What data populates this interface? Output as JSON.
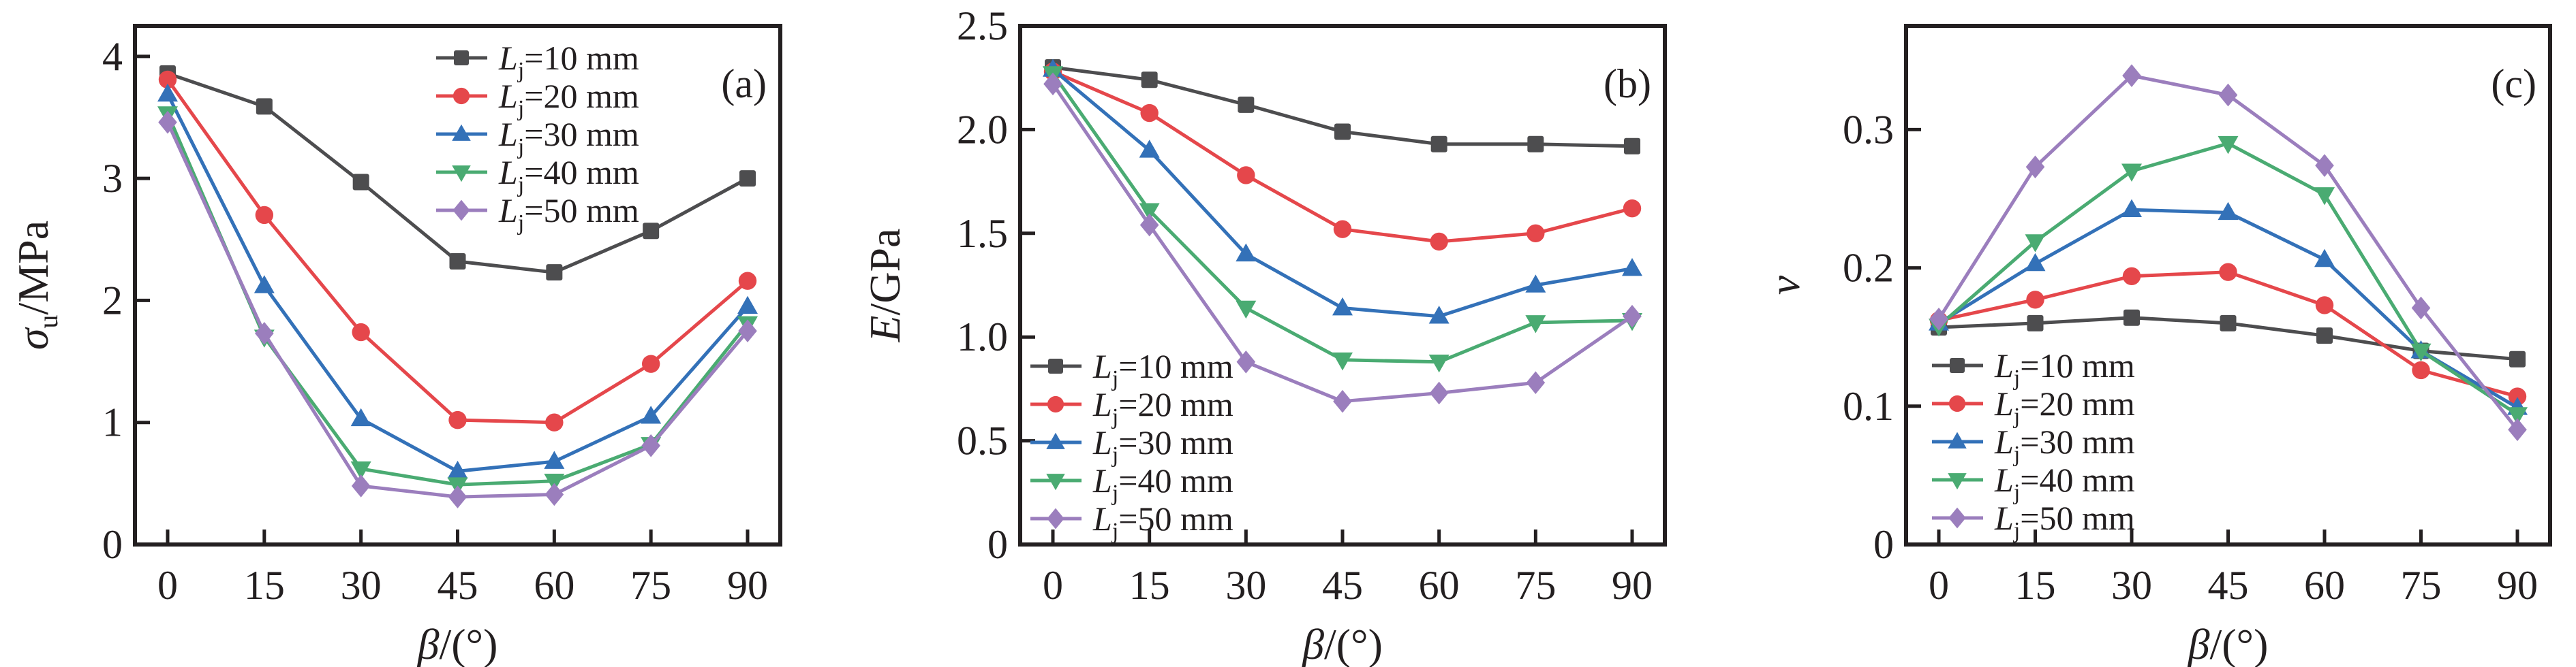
{
  "chart_data": [
    {
      "type": "line",
      "panel_label": "(a)",
      "ylabel_main": "σ",
      "ylabel_sub": "u",
      "ylabel_rest": "/MPa",
      "xlabel_main": "β",
      "xlabel_rest": "/(°)",
      "x": [
        0,
        15,
        30,
        45,
        60,
        75,
        90
      ],
      "xticks": [
        "0",
        "15",
        "30",
        "45",
        "60",
        "75",
        "90"
      ],
      "ylim": [
        0,
        4.25
      ],
      "yticks": [
        0,
        1,
        2,
        3,
        4
      ],
      "ytick_labels": [
        "0",
        "1",
        "2",
        "3",
        "4"
      ],
      "legend_position": "top-right",
      "series": [
        {
          "name": "Lj=10 mm",
          "values": [
            3.86,
            3.59,
            2.97,
            2.32,
            2.23,
            2.57,
            3.0
          ]
        },
        {
          "name": "Lj=20 mm",
          "values": [
            3.81,
            2.7,
            1.74,
            1.02,
            1.0,
            1.48,
            2.16
          ]
        },
        {
          "name": "Lj=30 mm",
          "values": [
            3.69,
            2.12,
            1.03,
            0.6,
            0.68,
            1.05,
            1.95
          ]
        },
        {
          "name": "Lj=40 mm",
          "values": [
            3.53,
            1.7,
            0.62,
            0.49,
            0.52,
            0.82,
            1.81
          ]
        },
        {
          "name": "Lj=50 mm",
          "values": [
            3.46,
            1.73,
            0.48,
            0.39,
            0.41,
            0.81,
            1.75
          ]
        }
      ]
    },
    {
      "type": "line",
      "panel_label": "(b)",
      "ylabel_main": "E",
      "ylabel_sub": "",
      "ylabel_rest": "/GPa",
      "xlabel_main": "β",
      "xlabel_rest": "/(°)",
      "x": [
        0,
        15,
        30,
        45,
        60,
        75,
        90
      ],
      "xticks": [
        "0",
        "15",
        "30",
        "45",
        "60",
        "75",
        "90"
      ],
      "ylim": [
        0,
        2.5
      ],
      "yticks": [
        0,
        0.5,
        1.0,
        1.5,
        2.0,
        2.5
      ],
      "ytick_labels": [
        "0",
        "0.5",
        "1.0",
        "1.5",
        "2.0",
        "2.5"
      ],
      "legend_position": "bottom-left",
      "series": [
        {
          "name": "Lj=10 mm",
          "values": [
            2.3,
            2.24,
            2.12,
            1.99,
            1.93,
            1.93,
            1.92
          ]
        },
        {
          "name": "Lj=20 mm",
          "values": [
            2.28,
            2.08,
            1.78,
            1.52,
            1.46,
            1.5,
            1.62
          ]
        },
        {
          "name": "Lj=30 mm",
          "values": [
            2.29,
            1.9,
            1.4,
            1.14,
            1.1,
            1.25,
            1.33
          ]
        },
        {
          "name": "Lj=40 mm",
          "values": [
            2.27,
            1.61,
            1.14,
            0.89,
            0.88,
            1.07,
            1.08
          ]
        },
        {
          "name": "Lj=50 mm",
          "values": [
            2.22,
            1.54,
            0.88,
            0.69,
            0.73,
            0.78,
            1.1
          ]
        }
      ]
    },
    {
      "type": "line",
      "panel_label": "(c)",
      "ylabel_main": "ν",
      "ylabel_sub": "",
      "ylabel_rest": "",
      "xlabel_main": "β",
      "xlabel_rest": "/(°)",
      "x": [
        0,
        15,
        30,
        45,
        60,
        75,
        90
      ],
      "xticks": [
        "0",
        "15",
        "30",
        "45",
        "60",
        "75",
        "90"
      ],
      "ylim": [
        0,
        0.375
      ],
      "yticks": [
        0,
        0.1,
        0.2,
        0.3
      ],
      "ytick_labels": [
        "0",
        "0.1",
        "0.2",
        "0.3"
      ],
      "legend_position": "bottom-left",
      "series": [
        {
          "name": "Lj=10 mm",
          "values": [
            0.157,
            0.16,
            0.164,
            0.16,
            0.151,
            0.14,
            0.134
          ]
        },
        {
          "name": "Lj=20 mm",
          "values": [
            0.162,
            0.177,
            0.194,
            0.197,
            0.173,
            0.126,
            0.107
          ]
        },
        {
          "name": "Lj=30 mm",
          "values": [
            0.16,
            0.203,
            0.242,
            0.24,
            0.206,
            0.14,
            0.099
          ]
        },
        {
          "name": "Lj=40 mm",
          "values": [
            0.158,
            0.219,
            0.27,
            0.29,
            0.253,
            0.14,
            0.094
          ]
        },
        {
          "name": "Lj=50 mm",
          "values": [
            0.163,
            0.273,
            0.339,
            0.325,
            0.274,
            0.171,
            0.083
          ]
        }
      ]
    }
  ],
  "legend": {
    "entries": [
      {
        "prefix": "L",
        "sub": "j",
        "suffix": "=10 mm",
        "marker": "square",
        "color": "#4d4d4f"
      },
      {
        "prefix": "L",
        "sub": "j",
        "suffix": "=20 mm",
        "marker": "circle",
        "color": "#e5474b"
      },
      {
        "prefix": "L",
        "sub": "j",
        "suffix": "=30 mm",
        "marker": "triangle-up",
        "color": "#3371b8"
      },
      {
        "prefix": "L",
        "sub": "j",
        "suffix": "=40 mm",
        "marker": "triangle-down",
        "color": "#4aab72"
      },
      {
        "prefix": "L",
        "sub": "j",
        "suffix": "=50 mm",
        "marker": "diamond",
        "color": "#9b7ebd"
      }
    ]
  }
}
